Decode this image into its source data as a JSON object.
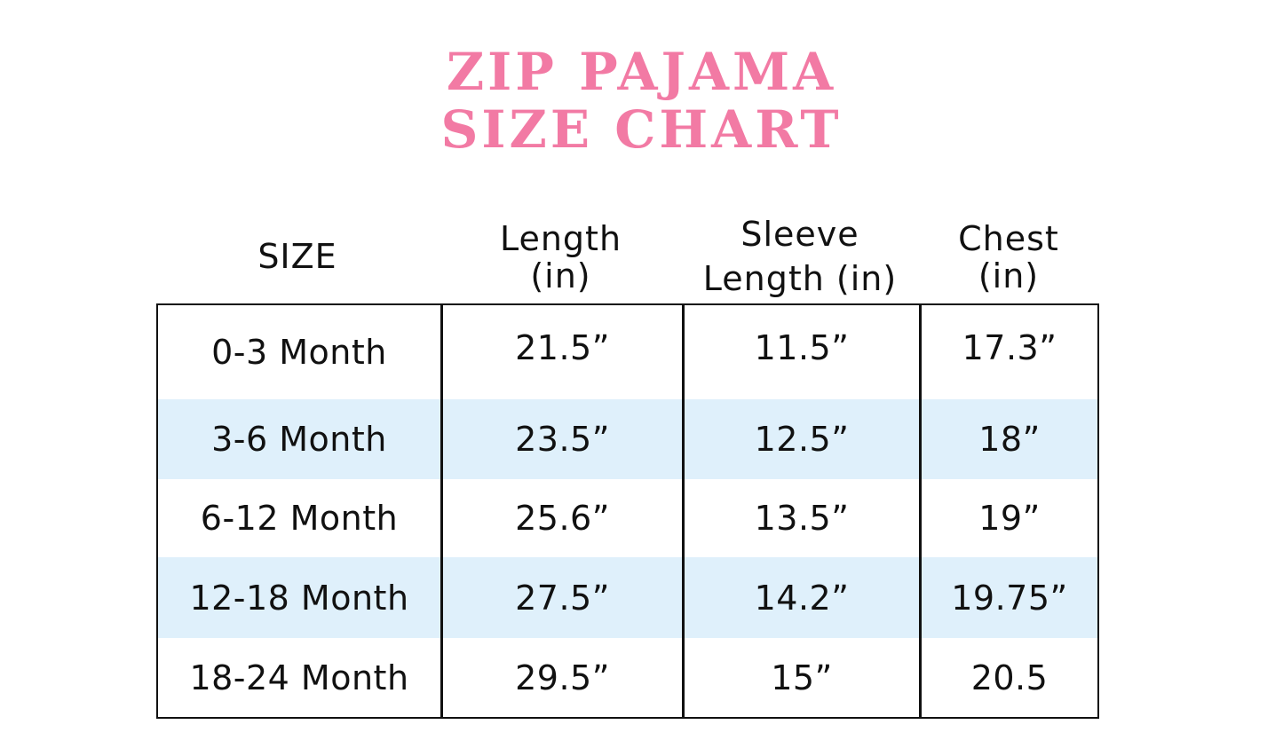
{
  "colors": {
    "title": "#f27aa4",
    "stripe": "#dff0fb",
    "text": "#111111",
    "background": "#ffffff"
  },
  "title": {
    "line1": "ZIP PAJAMA",
    "line2": "SIZE CHART"
  },
  "headers": [
    {
      "line1": "SIZE",
      "line2": ""
    },
    {
      "line1": "Length",
      "line2": "(in)"
    },
    {
      "line1": "Sleeve",
      "line2": "Length (in)"
    },
    {
      "line1": "Chest",
      "line2": "(in)"
    }
  ],
  "rows": [
    {
      "size": "0-3 Month",
      "length": "21.5”",
      "sleeve": "11.5”",
      "chest": "17.3”",
      "striped": false
    },
    {
      "size": "3-6 Month",
      "length": "23.5”",
      "sleeve": "12.5”",
      "chest": "18”",
      "striped": true
    },
    {
      "size": "6-12 Month",
      "length": "25.6”",
      "sleeve": "13.5”",
      "chest": "19”",
      "striped": false
    },
    {
      "size": "12-18 Month",
      "length": "27.5”",
      "sleeve": "14.2”",
      "chest": "19.75”",
      "striped": true
    },
    {
      "size": "18-24 Month",
      "length": "29.5”",
      "sleeve": "15”",
      "chest": "20.5",
      "striped": false
    }
  ]
}
